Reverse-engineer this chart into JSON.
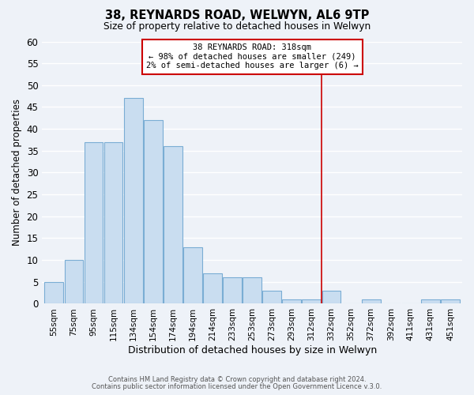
{
  "title": "38, REYNARDS ROAD, WELWYN, AL6 9TP",
  "subtitle": "Size of property relative to detached houses in Welwyn",
  "xlabel": "Distribution of detached houses by size in Welwyn",
  "ylabel": "Number of detached properties",
  "bar_color": "#c9ddf0",
  "bar_edge_color": "#7aadd4",
  "background_color": "#eef2f8",
  "plot_bg_color": "#eef2f8",
  "grid_color": "#ffffff",
  "categories": [
    "55sqm",
    "75sqm",
    "95sqm",
    "115sqm",
    "134sqm",
    "154sqm",
    "174sqm",
    "194sqm",
    "214sqm",
    "233sqm",
    "253sqm",
    "273sqm",
    "293sqm",
    "312sqm",
    "332sqm",
    "352sqm",
    "372sqm",
    "392sqm",
    "411sqm",
    "431sqm",
    "451sqm"
  ],
  "values": [
    5,
    10,
    37,
    37,
    47,
    42,
    36,
    13,
    7,
    6,
    6,
    3,
    1,
    1,
    3,
    0,
    1,
    0,
    0,
    1,
    1
  ],
  "ylim": [
    0,
    60
  ],
  "yticks": [
    0,
    5,
    10,
    15,
    20,
    25,
    30,
    35,
    40,
    45,
    50,
    55,
    60
  ],
  "vline_index": 13.5,
  "vline_color": "#cc0000",
  "annotation_title": "38 REYNARDS ROAD: 318sqm",
  "annotation_line1": "← 98% of detached houses are smaller (249)",
  "annotation_line2": "2% of semi-detached houses are larger (6) →",
  "annotation_box_color": "white",
  "annotation_box_edge": "#cc0000",
  "footnote1": "Contains HM Land Registry data © Crown copyright and database right 2024.",
  "footnote2": "Contains public sector information licensed under the Open Government Licence v.3.0."
}
